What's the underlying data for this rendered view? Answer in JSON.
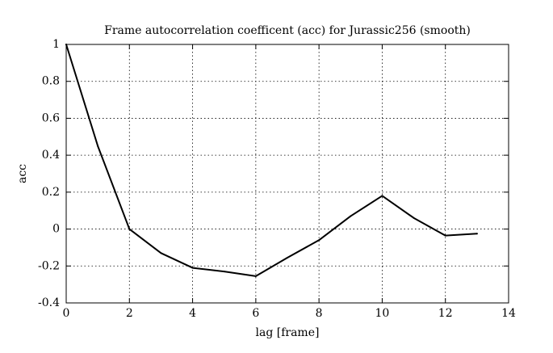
{
  "chart_data": {
    "type": "line",
    "title": "Frame autocorrelation coefficent (acc) for Jurassic256 (smooth)",
    "xlabel": "lag [frame]",
    "ylabel": "acc",
    "xlim": [
      0,
      14
    ],
    "ylim": [
      -0.4,
      1
    ],
    "x_ticks": [
      0,
      2,
      4,
      6,
      8,
      10,
      12,
      14
    ],
    "y_ticks": [
      -0.4,
      -0.2,
      0,
      0.2,
      0.4,
      0.6,
      0.8,
      1
    ],
    "x_tick_labels": [
      "0",
      "2",
      "4",
      "6",
      "8",
      "10",
      "12",
      "14"
    ],
    "y_tick_labels": [
      "-0.4",
      "-0.2",
      "0",
      "0.2",
      "0.4",
      "0.6",
      "0.8",
      "1"
    ],
    "grid": true,
    "line_color": "#000000",
    "series": [
      {
        "x": [
          0,
          1,
          2,
          3,
          4,
          5,
          6,
          7,
          8,
          9,
          10,
          11,
          12,
          13
        ],
        "values": [
          1.0,
          0.45,
          0.0,
          -0.13,
          -0.21,
          -0.23,
          -0.255,
          -0.155,
          -0.06,
          0.07,
          0.18,
          0.06,
          -0.035,
          -0.025
        ]
      }
    ]
  }
}
